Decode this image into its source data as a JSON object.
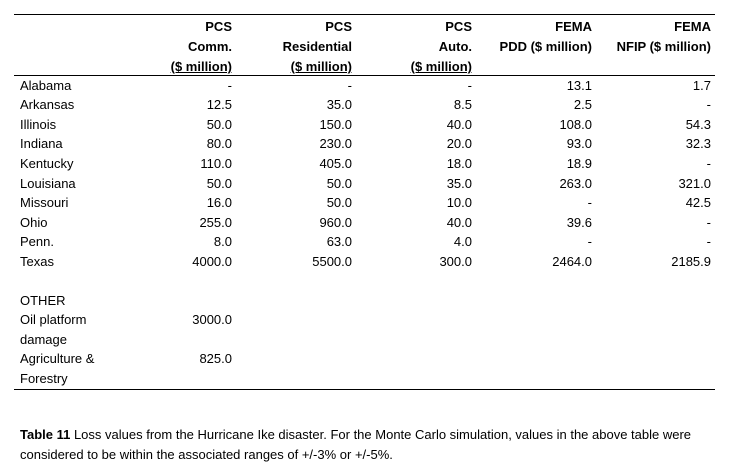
{
  "headers": [
    {
      "lines": [
        "PCS",
        "Comm."
      ],
      "underlined": "($ million)"
    },
    {
      "lines": [
        "PCS",
        "Residential"
      ],
      "underlined": "($ million)"
    },
    {
      "lines": [
        "PCS",
        "Auto."
      ],
      "underlined": "($ million)"
    },
    {
      "lines": [
        "FEMA",
        "PDD ($ million)"
      ],
      "underlined": ""
    },
    {
      "lines": [
        "FEMA",
        "NFIP ($ million)"
      ],
      "underlined": ""
    }
  ],
  "rows": [
    {
      "state": "Alabama",
      "values": [
        "-",
        "-",
        "-",
        "13.1",
        "1.7"
      ]
    },
    {
      "state": "Arkansas",
      "values": [
        "12.5",
        "35.0",
        "8.5",
        "2.5",
        "-"
      ]
    },
    {
      "state": "Illinois",
      "values": [
        "50.0",
        "150.0",
        "40.0",
        "108.0",
        "54.3"
      ]
    },
    {
      "state": "Indiana",
      "values": [
        "80.0",
        "230.0",
        "20.0",
        "93.0",
        "32.3"
      ]
    },
    {
      "state": "Kentucky",
      "values": [
        "110.0",
        "405.0",
        "18.0",
        "18.9",
        "-"
      ]
    },
    {
      "state": "Louisiana",
      "values": [
        "50.0",
        "50.0",
        "35.0",
        "263.0",
        "321.0"
      ]
    },
    {
      "state": "Missouri",
      "values": [
        "16.0",
        "50.0",
        "10.0",
        "-",
        "42.5"
      ]
    },
    {
      "state": "Ohio",
      "values": [
        "255.0",
        "960.0",
        "40.0",
        "39.6",
        "-"
      ]
    },
    {
      "state": "Penn.",
      "values": [
        "8.0",
        "63.0",
        "4.0",
        "-",
        "-"
      ]
    },
    {
      "state": "Texas",
      "values": [
        "4000.0",
        "5500.0",
        "300.0",
        "2464.0",
        "2185.9"
      ]
    }
  ],
  "other": {
    "heading": "OTHER",
    "items": [
      {
        "label_lines": [
          "Oil platform",
          "damage"
        ],
        "value": "3000.0"
      },
      {
        "label_lines": [
          "Agriculture &",
          "Forestry"
        ],
        "value": "825.0"
      }
    ]
  },
  "caption": {
    "label": "Table 11",
    "text": " Loss values from the Hurricane Ike disaster. For the Monte Carlo simulation, values in the above table were considered to be within the associated ranges of +/-3% or +/-5%."
  }
}
